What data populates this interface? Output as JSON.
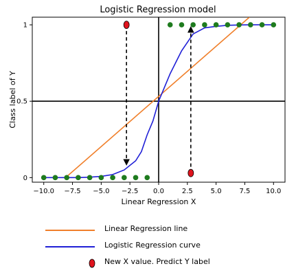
{
  "chart_data": {
    "type": "line",
    "title": "Logistic Regression model",
    "xlabel": "Linear Regression X",
    "ylabel": "Class label of Y",
    "xlim": [
      -11,
      11
    ],
    "ylim": [
      -0.03,
      1.05
    ],
    "xticks": [
      -10.0,
      -7.5,
      -5.0,
      -2.5,
      0.0,
      2.5,
      5.0,
      7.5,
      10.0
    ],
    "xtick_labels": [
      "−10.0",
      "−7.5",
      "−5.0",
      "−2.5",
      "0.0",
      "2.5",
      "5.0",
      "7.5",
      "10.0"
    ],
    "yticks": [
      0,
      0.5,
      1
    ],
    "ytick_labels": [
      "0",
      "0.5",
      "1"
    ],
    "grid": false,
    "reference_lines": {
      "vertical_x": 0,
      "horizontal_y": 0.5
    },
    "series": [
      {
        "name": "Linear Regression line",
        "color": "#f07f2a",
        "x": [
          -8.1,
          7.9
        ],
        "y": [
          0,
          1.05
        ]
      },
      {
        "name": "Logistic Regression curve",
        "color": "#1f1fd6",
        "x": [
          -10,
          -9,
          -8,
          -7,
          -6,
          -5,
          -4,
          -3,
          -2,
          -1.5,
          -1,
          -0.5,
          0,
          1,
          2,
          3,
          4,
          5,
          6,
          7,
          8,
          9,
          10
        ],
        "y": [
          0.0,
          0.0,
          0.0,
          0.0,
          0.003,
          0.008,
          0.02,
          0.05,
          0.11,
          0.17,
          0.28,
          0.37,
          0.5,
          0.68,
          0.83,
          0.94,
          0.98,
          0.99,
          0.997,
          0.999,
          1.0,
          1.0,
          1.0
        ]
      }
    ],
    "class0_points": {
      "color": "#1e7b1e",
      "x": [
        -10,
        -9,
        -8,
        -7,
        -6,
        -5,
        -4,
        -3,
        -2,
        -1
      ],
      "y": [
        0,
        0,
        0,
        0,
        0,
        0,
        0,
        0,
        0,
        0
      ]
    },
    "class1_points": {
      "color": "#1e7b1e",
      "x": [
        1,
        2,
        3,
        4,
        5,
        6,
        7,
        8,
        9,
        10
      ],
      "y": [
        1,
        1,
        1,
        1,
        1,
        1,
        1,
        1,
        1,
        1
      ]
    },
    "new_points": {
      "name": "New X value. Predict Y label",
      "color": "#e0141e",
      "points": [
        {
          "x": -2.8,
          "y": 1,
          "arrow_to_y": 0.1
        },
        {
          "x": 2.8,
          "y": 0.03,
          "arrow_to_y": 0.97
        }
      ]
    },
    "legend_placement": "below"
  }
}
